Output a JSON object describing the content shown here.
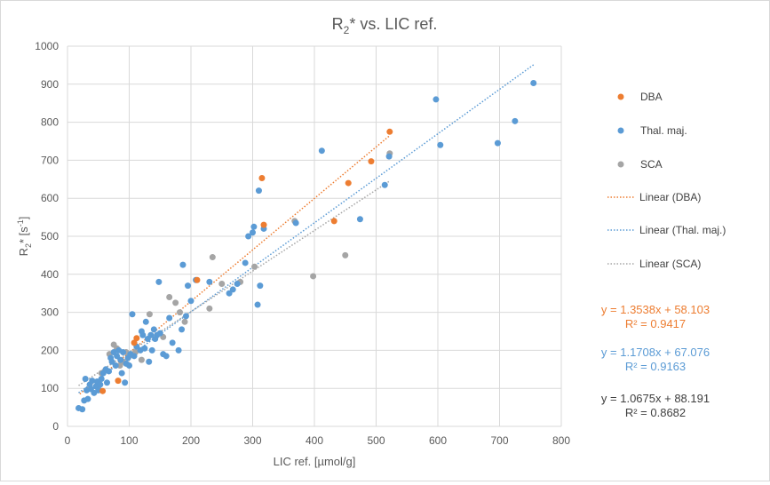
{
  "chart_data": {
    "type": "scatter",
    "title": "R2* vs. LIC ref.",
    "title_main": "R",
    "title_sub": "2",
    "title_rest": "* vs. LIC ref.",
    "xlabel": "LIC ref. [µmol/g]",
    "ylabel_main": "R",
    "ylabel_sub": "2",
    "ylabel_mid": "* [s",
    "ylabel_sup": "-1",
    "ylabel_end": "]",
    "xlim": [
      0,
      800
    ],
    "ylim": [
      0,
      1000
    ],
    "xticks": [
      0,
      100,
      200,
      300,
      400,
      500,
      600,
      700,
      800
    ],
    "yticks": [
      0,
      100,
      200,
      300,
      400,
      500,
      600,
      700,
      800,
      900,
      1000
    ],
    "grid": true,
    "legend_position": "right",
    "series": [
      {
        "name": "DBA",
        "color": "#ED7D31",
        "points": [
          [
            57,
            93
          ],
          [
            82,
            120
          ],
          [
            108,
            220
          ],
          [
            112,
            232
          ],
          [
            210,
            385
          ],
          [
            315,
            653
          ],
          [
            318,
            530
          ],
          [
            432,
            540
          ],
          [
            455,
            640
          ],
          [
            492,
            697
          ],
          [
            522,
            775
          ]
        ]
      },
      {
        "name": "Thal. maj.",
        "color": "#5B9BD5",
        "points": [
          [
            18,
            48
          ],
          [
            24,
            45
          ],
          [
            27,
            68
          ],
          [
            29,
            125
          ],
          [
            31,
            95
          ],
          [
            33,
            72
          ],
          [
            36,
            110
          ],
          [
            38,
            98
          ],
          [
            40,
            120
          ],
          [
            43,
            88
          ],
          [
            46,
            105
          ],
          [
            48,
            118
          ],
          [
            50,
            95
          ],
          [
            53,
            110
          ],
          [
            55,
            125
          ],
          [
            58,
            140
          ],
          [
            62,
            150
          ],
          [
            64,
            115
          ],
          [
            67,
            145
          ],
          [
            70,
            180
          ],
          [
            72,
            170
          ],
          [
            75,
            195
          ],
          [
            78,
            160
          ],
          [
            80,
            185
          ],
          [
            83,
            200
          ],
          [
            86,
            175
          ],
          [
            88,
            140
          ],
          [
            90,
            195
          ],
          [
            93,
            115
          ],
          [
            95,
            165
          ],
          [
            98,
            180
          ],
          [
            100,
            160
          ],
          [
            102,
            190
          ],
          [
            105,
            295
          ],
          [
            108,
            185
          ],
          [
            112,
            210
          ],
          [
            118,
            200
          ],
          [
            120,
            250
          ],
          [
            122,
            240
          ],
          [
            125,
            205
          ],
          [
            127,
            275
          ],
          [
            130,
            230
          ],
          [
            132,
            170
          ],
          [
            135,
            240
          ],
          [
            137,
            200
          ],
          [
            140,
            255
          ],
          [
            142,
            230
          ],
          [
            145,
            240
          ],
          [
            148,
            380
          ],
          [
            150,
            245
          ],
          [
            155,
            190
          ],
          [
            160,
            185
          ],
          [
            165,
            285
          ],
          [
            170,
            220
          ],
          [
            180,
            200
          ],
          [
            185,
            255
          ],
          [
            187,
            425
          ],
          [
            192,
            290
          ],
          [
            195,
            370
          ],
          [
            200,
            330
          ],
          [
            208,
            385
          ],
          [
            230,
            380
          ],
          [
            262,
            350
          ],
          [
            268,
            360
          ],
          [
            275,
            375
          ],
          [
            288,
            430
          ],
          [
            293,
            500
          ],
          [
            300,
            510
          ],
          [
            302,
            525
          ],
          [
            308,
            320
          ],
          [
            310,
            620
          ],
          [
            312,
            370
          ],
          [
            318,
            520
          ],
          [
            370,
            535
          ],
          [
            412,
            725
          ],
          [
            474,
            545
          ],
          [
            514,
            635
          ],
          [
            521,
            710
          ],
          [
            597,
            860
          ],
          [
            604,
            740
          ],
          [
            697,
            745
          ],
          [
            725,
            803
          ],
          [
            755,
            903
          ]
        ]
      },
      {
        "name": "SCA",
        "color": "#A5A5A5",
        "points": [
          [
            50,
            100
          ],
          [
            55,
            140
          ],
          [
            68,
            190
          ],
          [
            75,
            215
          ],
          [
            80,
            205
          ],
          [
            85,
            160
          ],
          [
            90,
            170
          ],
          [
            95,
            195
          ],
          [
            100,
            185
          ],
          [
            110,
            195
          ],
          [
            120,
            175
          ],
          [
            133,
            295
          ],
          [
            155,
            235
          ],
          [
            165,
            340
          ],
          [
            175,
            325
          ],
          [
            182,
            300
          ],
          [
            190,
            275
          ],
          [
            230,
            310
          ],
          [
            235,
            445
          ],
          [
            250,
            375
          ],
          [
            280,
            380
          ],
          [
            303,
            420
          ],
          [
            368,
            540
          ],
          [
            398,
            395
          ],
          [
            450,
            450
          ],
          [
            522,
            718
          ]
        ]
      }
    ],
    "trendlines": [
      {
        "name": "Linear (DBA)",
        "series": "DBA",
        "slope": 1.3538,
        "intercept": 58.103,
        "x_range": [
          20,
          522
        ],
        "color": "#ED7D31",
        "equation": "y = 1.3538x + 58.103",
        "r2": "R² = 0.9417"
      },
      {
        "name": "Linear (Thal. maj.)",
        "series": "Thal. maj.",
        "slope": 1.1708,
        "intercept": 67.076,
        "x_range": [
          18,
          755
        ],
        "color": "#5B9BD5",
        "equation": "y = 1.1708x + 67.076",
        "r2": "R² = 0.9163"
      },
      {
        "name": "Linear (SCA)",
        "series": "SCA",
        "slope": 1.0675,
        "intercept": 88.191,
        "x_range": [
          18,
          522
        ],
        "color": "#A5A5A5",
        "equation": "y = 1.0675x + 88.191",
        "r2": "R² = 0.8682",
        "label_color": "#404040"
      }
    ],
    "legend": [
      "DBA",
      "Thal. maj.",
      "SCA",
      "Linear (DBA)",
      "Linear (Thal. maj.)",
      "Linear (SCA)"
    ]
  }
}
